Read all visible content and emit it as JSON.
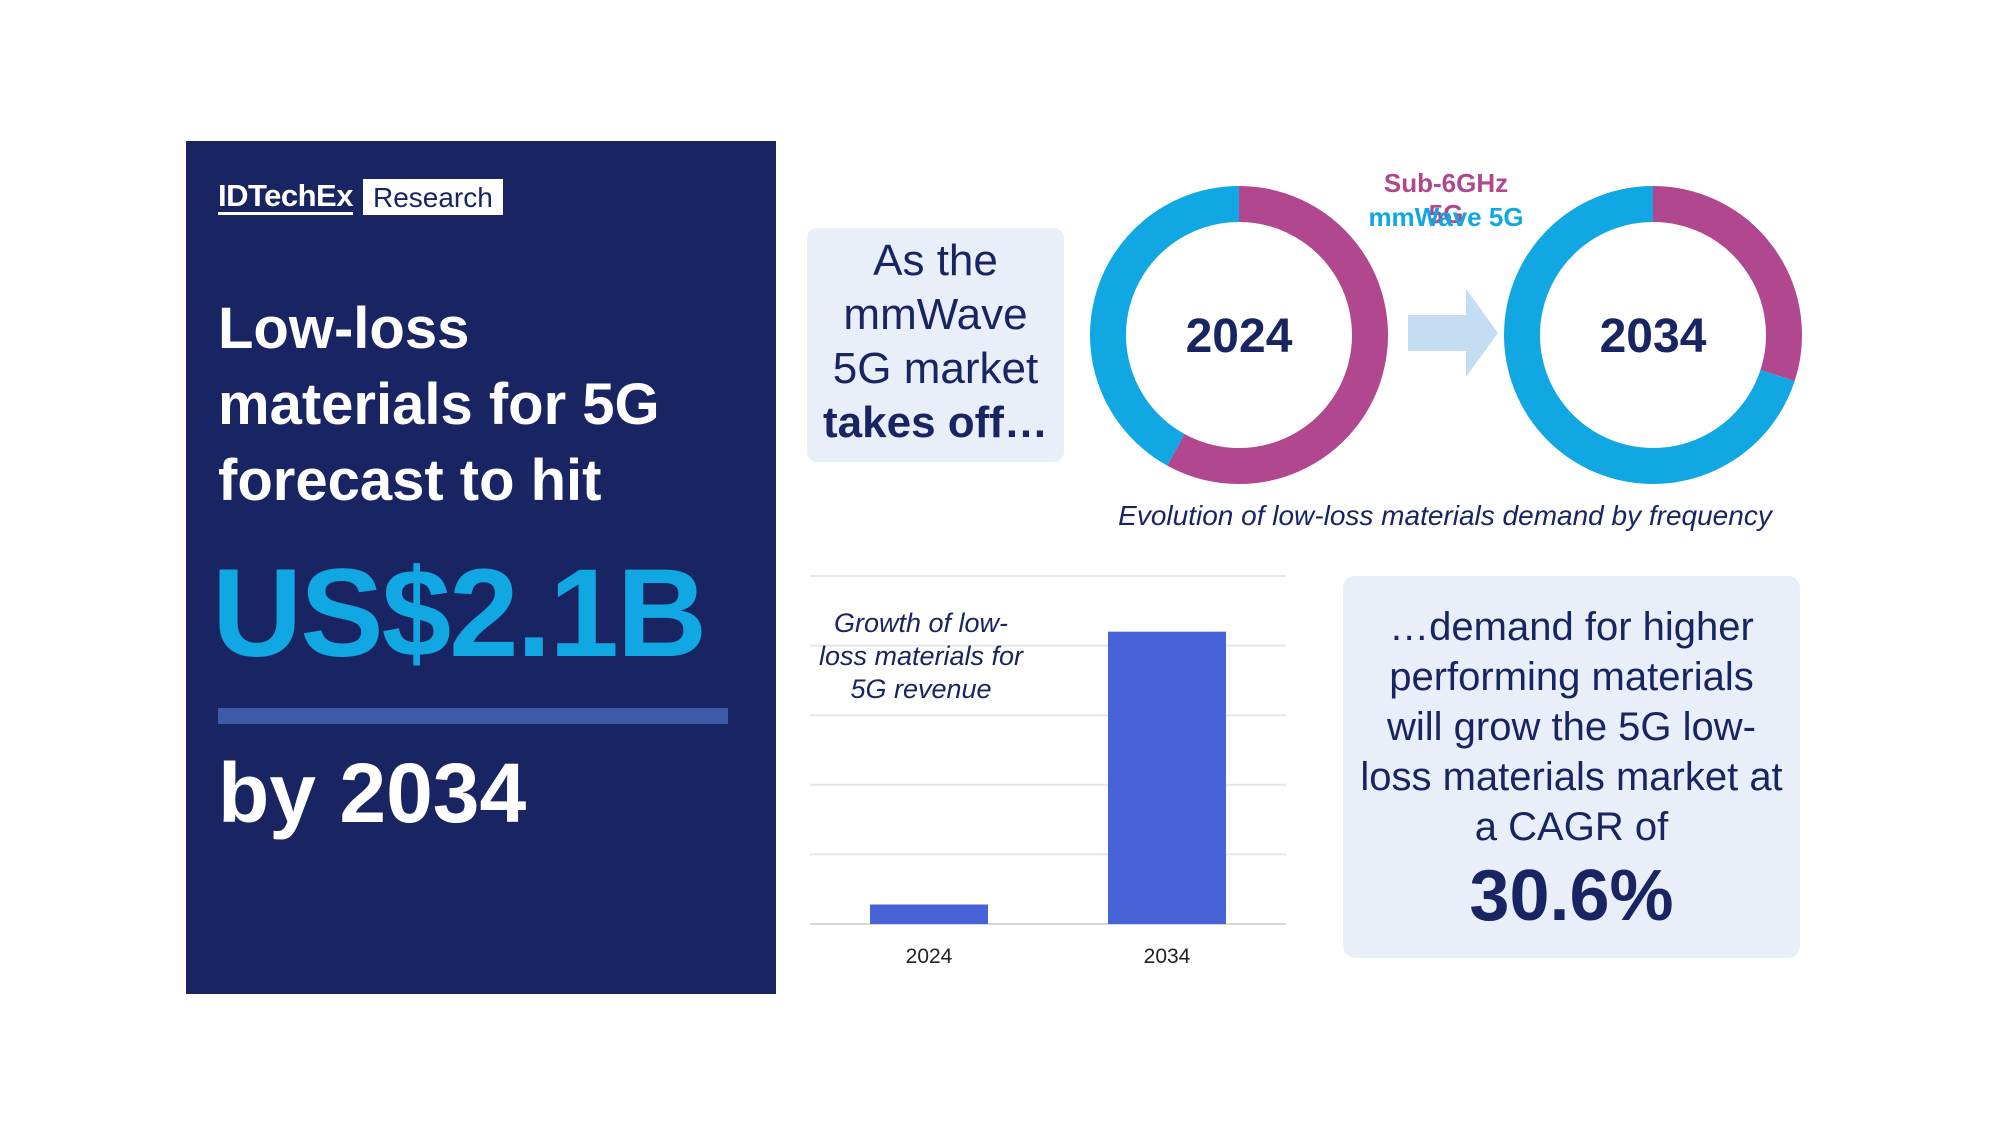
{
  "left_panel": {
    "logo_main": "IDTechEx",
    "logo_sub": "Research",
    "headline": "Low-loss materials for 5G forecast to hit",
    "big_number": "US$2.1B",
    "by_year": "by 2034"
  },
  "intro": {
    "line1": "As the",
    "line2": "mmWave",
    "line3": "5G market",
    "bold": "takes off…"
  },
  "cagr_box": {
    "text": "…demand for higher performing materials will grow the 5G low-loss materials market at a CAGR of",
    "value": "30.6%"
  },
  "colors": {
    "navy": "#192562",
    "cyan": "#10a7e3",
    "magenta": "#b0478f",
    "bar_blue": "#4663d8",
    "light_panel": "#e8eff8",
    "arrow": "#c5ddf2"
  },
  "chart_data": [
    {
      "type": "pie",
      "variant": "donut",
      "caption": "Evolution of low-loss materials demand by frequency",
      "legend": [
        {
          "label": "Sub-6GHz 5G",
          "color": "#b0478f"
        },
        {
          "label": "mmWave 5G",
          "color": "#10a7e3"
        }
      ],
      "donuts": [
        {
          "center_label": "2024",
          "sub6_share": 0.58,
          "mmwave_share": 0.42
        },
        {
          "center_label": "2034",
          "sub6_share": 0.3,
          "mmwave_share": 0.7
        }
      ]
    },
    {
      "type": "bar",
      "title": "Growth of low-loss materials for 5G revenue",
      "categories": [
        "2024",
        "2034"
      ],
      "values": [
        0.14,
        2.1
      ],
      "ylim": [
        0,
        2.5
      ],
      "grid": true,
      "ytick_labels_visible": false
    }
  ]
}
